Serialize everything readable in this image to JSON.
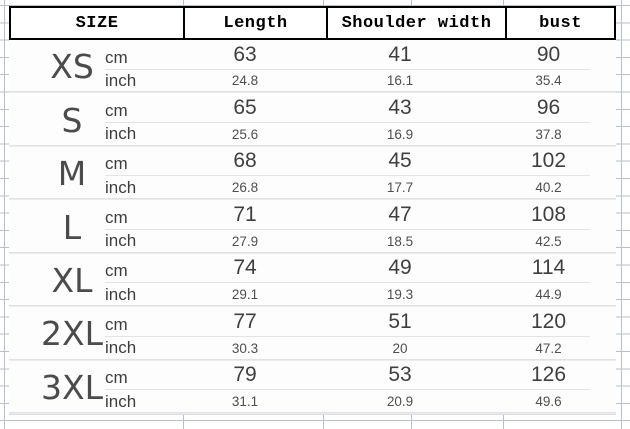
{
  "table": {
    "columns": [
      "SIZE",
      "Length",
      "Shoulder width",
      "bust"
    ],
    "unit_labels": [
      "cm",
      "inch"
    ],
    "rows": [
      {
        "size": "XS",
        "cm": [
          "63",
          "41",
          "90"
        ],
        "inch": [
          "24.8",
          "16.1",
          "35.4"
        ]
      },
      {
        "size": "S",
        "cm": [
          "65",
          "43",
          "96"
        ],
        "inch": [
          "25.6",
          "16.9",
          "37.8"
        ]
      },
      {
        "size": "M",
        "cm": [
          "68",
          "45",
          "102"
        ],
        "inch": [
          "26.8",
          "17.7",
          "40.2"
        ]
      },
      {
        "size": "L",
        "cm": [
          "71",
          "47",
          "108"
        ],
        "inch": [
          "27.9",
          "18.5",
          "42.5"
        ]
      },
      {
        "size": "XL",
        "cm": [
          "74",
          "49",
          "114"
        ],
        "inch": [
          "29.1",
          "19.3",
          "44.9"
        ]
      },
      {
        "size": "2XL",
        "cm": [
          "77",
          "51",
          "120"
        ],
        "inch": [
          "30.3",
          "20",
          "47.2"
        ]
      },
      {
        "size": "3XL",
        "cm": [
          "79",
          "53",
          "126"
        ],
        "inch": [
          "31.1",
          "20.9",
          "49.6"
        ]
      }
    ]
  },
  "colors": {
    "gridline": "#b6bed3",
    "header_border": "#000000",
    "header_text": "#000000",
    "size_text": "#4b4b4b",
    "value_text": "#3f3f3f",
    "secondary_value_text": "#4f4f4f",
    "row_divider": "#e3e3e3",
    "group_divider": "#dcdcdc",
    "panel_background": "#fdfdfd"
  }
}
